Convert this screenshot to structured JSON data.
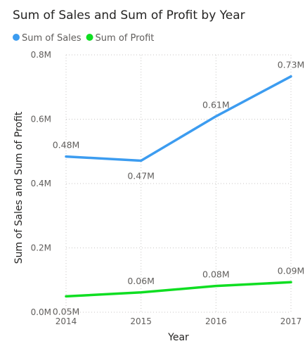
{
  "chart_data": {
    "type": "line",
    "title": "Sum of Sales and Sum of Profit by Year",
    "xlabel": "Year",
    "ylabel": "Sum of Sales and Sum of Profit",
    "categories": [
      "2014",
      "2015",
      "2016",
      "2017"
    ],
    "ylim": [
      0,
      800000
    ],
    "yticks": [
      {
        "value": 0,
        "label": "0.0M"
      },
      {
        "value": 200000,
        "label": "0.2M"
      },
      {
        "value": 400000,
        "label": "0.4M"
      },
      {
        "value": 600000,
        "label": "0.6M"
      },
      {
        "value": 800000,
        "label": "0.8M"
      }
    ],
    "grid": true,
    "legend_position": "top-left",
    "series": [
      {
        "name": "Sum of Sales",
        "color": "#3c9cf0",
        "values": [
          484000,
          471000,
          609000,
          733000
        ],
        "labels": [
          "0.48M",
          "0.47M",
          "0.61M",
          "0.73M"
        ]
      },
      {
        "name": "Sum of Profit",
        "color": "#0fde22",
        "values": [
          49500,
          61600,
          81800,
          93400
        ],
        "labels": [
          "0.05M",
          "0.06M",
          "0.08M",
          "0.09M"
        ]
      }
    ]
  }
}
